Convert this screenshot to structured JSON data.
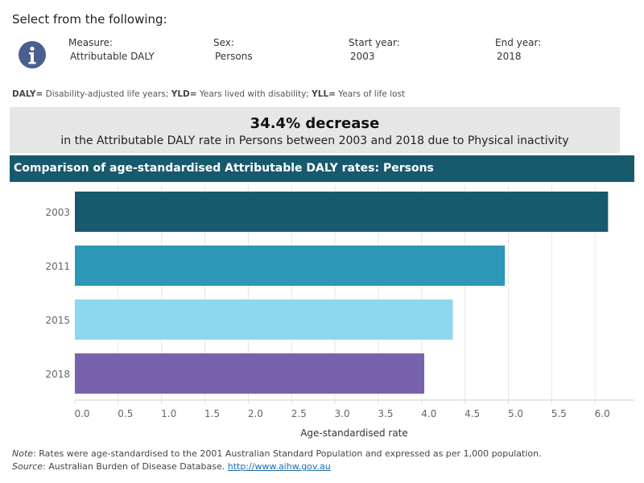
{
  "header": {
    "title": "Select from the following:",
    "icon": "info-icon",
    "filters": [
      {
        "label": "Measure:",
        "value": "Attributable DALY"
      },
      {
        "label": "Sex:",
        "value": "Persons"
      },
      {
        "label": "Start year:",
        "value": "2003"
      },
      {
        "label": "End year:",
        "value": "2018"
      }
    ]
  },
  "legend": {
    "daly_abbr": "DALY=",
    "daly_text": " Disability-adjusted life years; ",
    "yld_abbr": "YLD=",
    "yld_text": " Years lived with disability; ",
    "yll_abbr": "YLL=",
    "yll_text": " Years of life lost"
  },
  "summary": {
    "headline": "34.4% decrease",
    "detail": "in the Attributable DALY rate in Persons between 2003 and 2018 due to Physical inactivity"
  },
  "chart_title": "Comparison of age-standardised Attributable DALY rates: Persons",
  "chart_data": {
    "type": "bar",
    "orientation": "horizontal",
    "categories": [
      "2003",
      "2011",
      "2015",
      "2018"
    ],
    "values": [
      6.15,
      4.96,
      4.36,
      4.03
    ],
    "colors": [
      "#175a6e",
      "#2d97b8",
      "#8dd8f0",
      "#7862ad"
    ],
    "xlabel": "Age-standardised rate",
    "xlim": [
      0,
      6.45
    ],
    "xticks": [
      "0.0",
      "0.5",
      "1.0",
      "1.5",
      "2.0",
      "2.5",
      "3.0",
      "3.5",
      "4.0",
      "4.5",
      "5.0",
      "5.5",
      "6.0"
    ],
    "grid": true
  },
  "notes": {
    "note_label": "Note",
    "note_text": ": Rates were age-standardised to the 2001 Australian Standard Population and expressed as per 1,000 population.",
    "source_label": "Source",
    "source_text": ": Australian Burden of Disease Database. ",
    "source_link": "http://www.aihw.gov.au"
  }
}
